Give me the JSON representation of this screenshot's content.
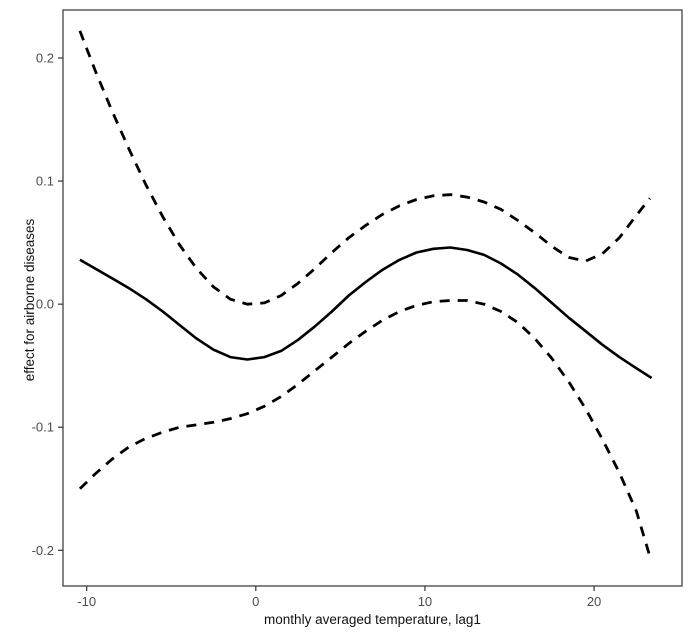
{
  "chart_data": {
    "type": "line",
    "title": "",
    "xlabel": "monthly averaged temperature, lag1",
    "ylabel": "effect for airborne diseases",
    "xlim": [
      -11.4,
      25.2
    ],
    "ylim": [
      -0.229,
      0.239
    ],
    "grid": false,
    "legend": "none",
    "panel_border_color": "#333333",
    "line_color": "#000000",
    "tick_color": "#333333",
    "x_ticks": [
      {
        "value": -10,
        "label": "-10"
      },
      {
        "value": 0,
        "label": "0"
      },
      {
        "value": 10,
        "label": "10"
      },
      {
        "value": 20,
        "label": "20"
      }
    ],
    "y_ticks": [
      {
        "value": 0.2,
        "label": "0.2"
      },
      {
        "value": 0.1,
        "label": "0.1"
      },
      {
        "value": 0.0,
        "label": "0.0"
      },
      {
        "value": -0.1,
        "label": "-0.1"
      },
      {
        "value": -0.2,
        "label": "-0.2"
      }
    ],
    "series": [
      {
        "name": "estimate",
        "style": "solid",
        "points": [
          [
            -10.4,
            0.036
          ],
          [
            -9.5,
            0.029
          ],
          [
            -8.5,
            0.021
          ],
          [
            -7.5,
            0.013
          ],
          [
            -6.5,
            0.004
          ],
          [
            -5.5,
            -0.006
          ],
          [
            -4.5,
            -0.017
          ],
          [
            -3.5,
            -0.028
          ],
          [
            -2.5,
            -0.037
          ],
          [
            -1.5,
            -0.043
          ],
          [
            -0.5,
            -0.045
          ],
          [
            0.5,
            -0.043
          ],
          [
            1.5,
            -0.038
          ],
          [
            2.5,
            -0.029
          ],
          [
            3.5,
            -0.018
          ],
          [
            4.5,
            -0.006
          ],
          [
            5.5,
            0.007
          ],
          [
            6.5,
            0.018
          ],
          [
            7.5,
            0.028
          ],
          [
            8.5,
            0.036
          ],
          [
            9.5,
            0.042
          ],
          [
            10.5,
            0.045
          ],
          [
            11.5,
            0.046
          ],
          [
            12.5,
            0.044
          ],
          [
            13.5,
            0.04
          ],
          [
            14.5,
            0.033
          ],
          [
            15.5,
            0.024
          ],
          [
            16.5,
            0.013
          ],
          [
            17.5,
            0.001
          ],
          [
            18.5,
            -0.011
          ],
          [
            19.5,
            -0.022
          ],
          [
            20.5,
            -0.033
          ],
          [
            21.5,
            -0.043
          ],
          [
            22.5,
            -0.052
          ],
          [
            23.4,
            -0.06
          ]
        ]
      },
      {
        "name": "upper-95ci",
        "style": "dashed",
        "points": [
          [
            -10.4,
            0.222
          ],
          [
            -9.5,
            0.19
          ],
          [
            -8.5,
            0.157
          ],
          [
            -7.5,
            0.126
          ],
          [
            -6.5,
            0.097
          ],
          [
            -5.5,
            0.071
          ],
          [
            -4.5,
            0.048
          ],
          [
            -3.5,
            0.029
          ],
          [
            -2.5,
            0.014
          ],
          [
            -1.5,
            0.004
          ],
          [
            -0.5,
            0.0
          ],
          [
            0.5,
            0.001
          ],
          [
            1.5,
            0.007
          ],
          [
            2.5,
            0.017
          ],
          [
            3.5,
            0.029
          ],
          [
            4.5,
            0.042
          ],
          [
            5.5,
            0.054
          ],
          [
            6.5,
            0.064
          ],
          [
            7.5,
            0.073
          ],
          [
            8.5,
            0.08
          ],
          [
            9.5,
            0.085
          ],
          [
            10.5,
            0.088
          ],
          [
            11.5,
            0.089
          ],
          [
            12.5,
            0.087
          ],
          [
            13.5,
            0.083
          ],
          [
            14.5,
            0.077
          ],
          [
            15.5,
            0.068
          ],
          [
            16.5,
            0.058
          ],
          [
            17.5,
            0.047
          ],
          [
            18.5,
            0.038
          ],
          [
            19.5,
            0.035
          ],
          [
            20.5,
            0.041
          ],
          [
            21.5,
            0.054
          ],
          [
            22.5,
            0.072
          ],
          [
            23.3,
            0.086
          ]
        ]
      },
      {
        "name": "lower-95ci",
        "style": "dashed",
        "points": [
          [
            -10.4,
            -0.15
          ],
          [
            -9.5,
            -0.138
          ],
          [
            -8.5,
            -0.126
          ],
          [
            -7.5,
            -0.116
          ],
          [
            -6.5,
            -0.109
          ],
          [
            -5.5,
            -0.104
          ],
          [
            -4.5,
            -0.1
          ],
          [
            -3.5,
            -0.098
          ],
          [
            -2.5,
            -0.096
          ],
          [
            -1.5,
            -0.093
          ],
          [
            -0.5,
            -0.089
          ],
          [
            0.5,
            -0.083
          ],
          [
            1.5,
            -0.075
          ],
          [
            2.5,
            -0.065
          ],
          [
            3.5,
            -0.054
          ],
          [
            4.5,
            -0.043
          ],
          [
            5.5,
            -0.032
          ],
          [
            6.5,
            -0.022
          ],
          [
            7.5,
            -0.013
          ],
          [
            8.5,
            -0.006
          ],
          [
            9.5,
            -0.001
          ],
          [
            10.5,
            0.002
          ],
          [
            11.5,
            0.003
          ],
          [
            12.5,
            0.003
          ],
          [
            13.5,
            0.0
          ],
          [
            14.5,
            -0.006
          ],
          [
            15.5,
            -0.015
          ],
          [
            16.5,
            -0.028
          ],
          [
            17.5,
            -0.044
          ],
          [
            18.5,
            -0.063
          ],
          [
            19.5,
            -0.085
          ],
          [
            20.5,
            -0.11
          ],
          [
            21.5,
            -0.137
          ],
          [
            22.5,
            -0.168
          ],
          [
            23.3,
            -0.205
          ]
        ]
      }
    ]
  }
}
